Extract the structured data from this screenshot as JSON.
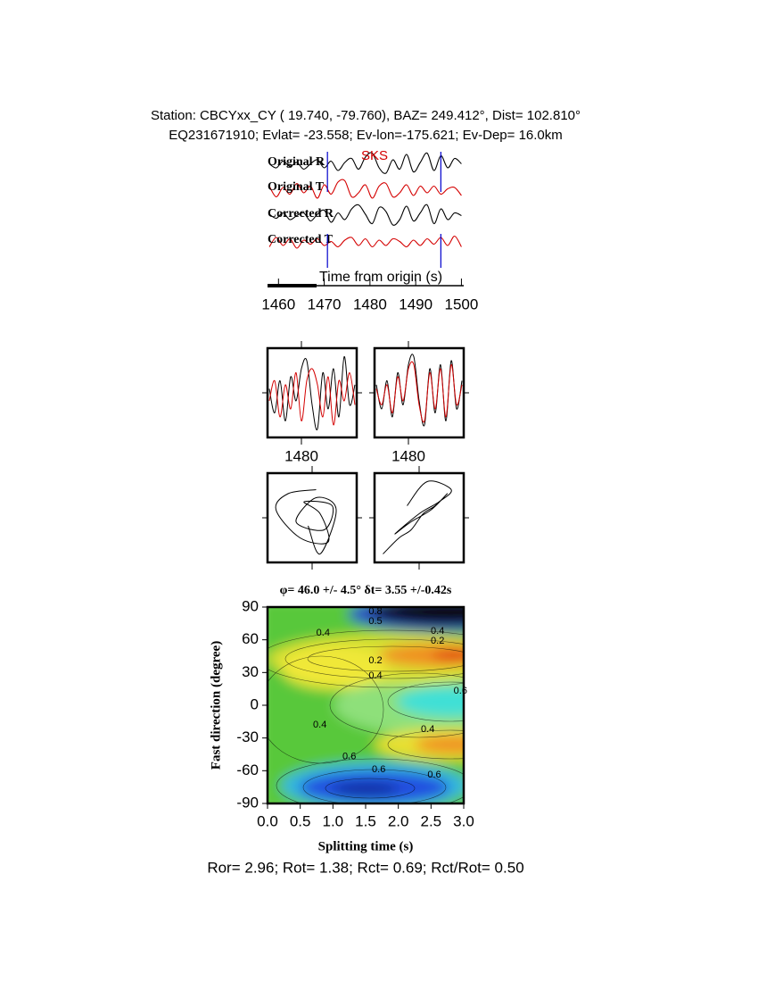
{
  "header": {
    "line1": "Station: CBCYxx_CY (  19.740,  -79.760), BAZ=  249.412°, Dist=  102.810°",
    "line2": "EQ231671910; Evlat= -23.558; Ev-lon=-175.621; Ev-Dep= 16.0km"
  },
  "chart_data": [
    {
      "type": "traces",
      "xlabel": "Time from origin (s)",
      "xlim": [
        1457.6,
        1500.5
      ],
      "xticks": [
        1460,
        1470,
        1480,
        1490,
        1500
      ],
      "annotations": [
        {
          "text": "SKS",
          "x": 1481
        }
      ],
      "window": [
        1470.7,
        1495.5
      ],
      "window_color": "#0000cc",
      "x": [
        1458,
        1459.5,
        1461,
        1462.5,
        1464,
        1465.5,
        1467,
        1468.5,
        1470,
        1471.5,
        1473,
        1474.5,
        1476,
        1477.5,
        1479,
        1480.5,
        1482,
        1483.5,
        1485,
        1486.5,
        1488,
        1489.5,
        1491,
        1492.5,
        1494,
        1495.5,
        1497,
        1498.5,
        1500
      ],
      "series": [
        {
          "name": "Original R",
          "color": "#000000",
          "values": [
            0.1,
            -0.2,
            0.3,
            -0.1,
            0.2,
            -0.3,
            0.1,
            0.4,
            -0.2,
            0.3,
            -0.4,
            0.2,
            0.5,
            -0.3,
            0.6,
            0.9,
            -0.2,
            -0.6,
            0.4,
            -0.3,
            0.8,
            -0.5,
            0.2,
            0.9,
            -0.4,
            0.7,
            -0.2,
            0.5,
            0.1
          ]
        },
        {
          "name": "Original T",
          "color": "#d40000",
          "values": [
            0.3,
            -0.5,
            0.2,
            -0.3,
            0.5,
            -0.2,
            0.3,
            -0.6,
            0.4,
            -0.3,
            0.6,
            0.7,
            -0.5,
            -0.2,
            0.4,
            -0.6,
            0.3,
            0.5,
            -0.5,
            -0.2,
            0.4,
            -0.4,
            0.3,
            -0.2,
            0.3,
            -0.3,
            0.1,
            0.2,
            -0.4
          ]
        },
        {
          "name": "Corrected R",
          "color": "#000000",
          "values": [
            0.2,
            -0.1,
            0.3,
            -0.2,
            0.1,
            0.3,
            -0.3,
            0.2,
            0.5,
            -0.4,
            0.3,
            -0.2,
            0.6,
            0.9,
            0.2,
            -0.5,
            0.7,
            0.4,
            -0.6,
            -0.2,
            0.8,
            -0.3,
            0.3,
            0.9,
            -0.5,
            0.6,
            -0.2,
            0.3,
            0.1
          ]
        },
        {
          "name": "Corrected T",
          "color": "#d40000",
          "values": [
            -0.3,
            0.4,
            -0.2,
            0.3,
            -0.4,
            0.2,
            -0.1,
            0.3,
            -0.2,
            0.1,
            -0.3,
            0.2,
            0.4,
            -0.2,
            0.3,
            -0.3,
            0.2,
            -0.2,
            0.3,
            0.1,
            -0.3,
            0.2,
            -0.2,
            0.3,
            -0.1,
            0.4,
            -0.2,
            0.5,
            -0.3
          ]
        }
      ]
    },
    {
      "type": "window",
      "xlim": [
        1470.5,
        1495.5
      ],
      "xticks": [
        1480
      ],
      "x": [
        1471,
        1472.5,
        1474,
        1475.5,
        1477,
        1478.5,
        1480,
        1481.5,
        1483,
        1484.5,
        1486,
        1487.5,
        1489,
        1490.5,
        1492,
        1493.5,
        1495
      ],
      "series": [
        {
          "color": "#000000",
          "values": [
            0.1,
            -0.5,
            0.3,
            -0.7,
            0.4,
            -0.2,
            0.6,
            0.8,
            -0.3,
            -0.9,
            0.5,
            -0.4,
            0.6,
            -0.6,
            0.9,
            -0.3,
            0.2
          ]
        },
        {
          "color": "#d40000",
          "values": [
            -0.2,
            0.3,
            -0.6,
            0.2,
            -0.4,
            0.5,
            -0.7,
            0.3,
            0.6,
            0.2,
            -0.6,
            0.4,
            -0.8,
            0.3,
            -0.2,
            0.5,
            -0.3
          ]
        }
      ]
    },
    {
      "type": "window",
      "xlim": [
        1470.5,
        1495.5
      ],
      "xticks": [
        1480
      ],
      "x": [
        1471,
        1472.5,
        1474,
        1475.5,
        1477,
        1478.5,
        1480,
        1481.5,
        1483,
        1484.5,
        1486,
        1487.5,
        1489,
        1490.5,
        1492,
        1493.5,
        1495
      ],
      "series": [
        {
          "color": "#000000",
          "values": [
            0.2,
            -0.4,
            0.3,
            -0.6,
            0.5,
            -0.3,
            0.7,
            0.9,
            -0.2,
            -0.8,
            0.6,
            -0.5,
            0.7,
            -0.7,
            0.8,
            -0.4,
            0.3
          ]
        },
        {
          "color": "#d40000",
          "values": [
            0.1,
            -0.3,
            0.2,
            -0.5,
            0.4,
            -0.2,
            0.6,
            0.7,
            -0.3,
            -0.7,
            0.5,
            -0.4,
            0.6,
            -0.6,
            0.7,
            -0.3,
            0.2
          ]
        }
      ]
    },
    {
      "type": "particle-motion",
      "series": [
        {
          "color": "#000000",
          "x": [
            0.1,
            -0.6,
            -0.9,
            -0.3,
            0.4,
            0.2,
            -0.2,
            0.5,
            0.3,
            -0.4,
            0.1,
            0.6,
            0.2,
            -0.1
          ],
          "values": [
            0.7,
            0.6,
            0.2,
            -0.5,
            -0.6,
            0.1,
            0.4,
            0.3,
            -0.3,
            -0.1,
            0.5,
            0.2,
            -0.9,
            -0.2
          ]
        }
      ]
    },
    {
      "type": "particle-motion",
      "series": [
        {
          "color": "#000000",
          "x": [
            -0.9,
            -0.5,
            -0.2,
            0.1,
            0.4,
            0.7,
            0.3,
            -0.2,
            -0.6,
            0.0,
            0.5,
            0.8,
            0.2,
            -0.3
          ],
          "values": [
            -0.9,
            -0.5,
            -0.3,
            0.1,
            0.3,
            0.6,
            0.2,
            -0.1,
            -0.4,
            0.1,
            0.4,
            0.7,
            0.9,
            0.3
          ]
        }
      ]
    },
    {
      "type": "contour",
      "title": "φ= 46.0 +/- 4.5° δt= 3.55 +/-0.42s",
      "xlabel": "Splitting time (s)",
      "ylabel": "Fast direction (degree)",
      "xlim": [
        0,
        3
      ],
      "ylim": [
        -90,
        90
      ],
      "xticks": [
        {
          "value": 0,
          "label": "0.0"
        },
        0.5,
        {
          "value": 1,
          "label": "1.0"
        },
        1.5,
        {
          "value": 2,
          "label": "2.0"
        },
        2.5,
        {
          "value": 3,
          "label": "3.0"
        }
      ],
      "yticks": [
        -90,
        -60,
        -30,
        0,
        30,
        60,
        90
      ],
      "contour_labels": [
        {
          "label": "0.4",
          "x": 0.85,
          "y": 66
        },
        {
          "label": "0.5",
          "x": 1.65,
          "y": 77
        },
        {
          "label": "0.8",
          "x": 1.65,
          "y": 86
        },
        {
          "label": "0.4",
          "x": 2.6,
          "y": 68
        },
        {
          "label": "0.2",
          "x": 2.6,
          "y": 59
        },
        {
          "label": "0.2",
          "x": 1.65,
          "y": 41
        },
        {
          "label": "0.4",
          "x": 1.65,
          "y": 27
        },
        {
          "label": "0.6",
          "x": 2.95,
          "y": 13
        },
        {
          "label": "0.4",
          "x": 0.8,
          "y": -18
        },
        {
          "label": "0.4",
          "x": 2.45,
          "y": -22
        },
        {
          "label": "0.6",
          "x": 1.25,
          "y": -47
        },
        {
          "label": "0.6",
          "x": 1.7,
          "y": -59
        },
        {
          "label": "0.6",
          "x": 2.55,
          "y": -64
        }
      ]
    }
  ],
  "footer": "Ror= 2.96; Rot= 1.38; Rct= 0.69; Rct/Rot= 0.50"
}
